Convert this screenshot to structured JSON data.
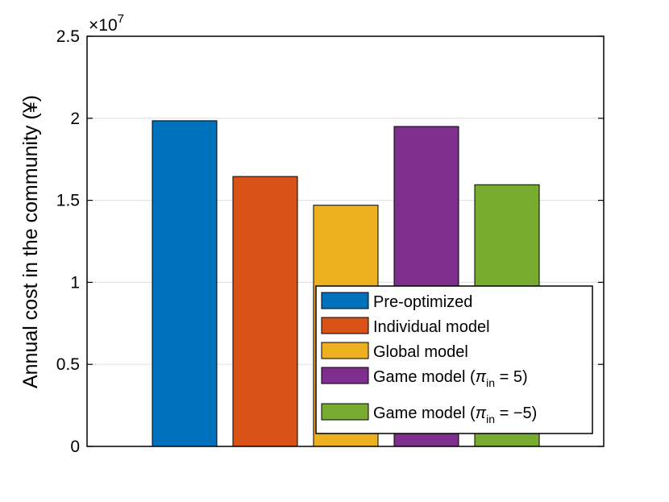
{
  "chart_data": {
    "type": "bar",
    "title": "",
    "xlabel": "",
    "ylabel": "Annual cost in the community (¥)",
    "ylim": [
      0,
      2.5
    ],
    "yticks": [
      "0",
      "0.5",
      "1",
      "1.5",
      "2",
      "2.5"
    ],
    "y_multiplier": {
      "base": "×10",
      "exponent": "7"
    },
    "grid": "y",
    "legend_position": "bottom-right",
    "series": [
      {
        "name": "Pre-optimized",
        "value": 1.985,
        "color": "#0072BD",
        "legend": {
          "text": "Pre-optimized"
        }
      },
      {
        "name": "Individual model",
        "value": 1.645,
        "color": "#D95319",
        "legend": {
          "text": "Individual model"
        }
      },
      {
        "name": "Global model",
        "value": 1.47,
        "color": "#EDB120",
        "legend": {
          "text": "Global model"
        }
      },
      {
        "name": "Game model (π_in = 5)",
        "value": 1.95,
        "color": "#7E2F8E",
        "legend": {
          "text": "Game model (",
          "symbol": "π",
          "subscript": "in",
          "suffix": " = 5)"
        }
      },
      {
        "name": "Game model (π_in = −5)",
        "value": 1.595,
        "color": "#77AC30",
        "legend": {
          "text": "Game model (",
          "symbol": "π",
          "subscript": "in",
          "suffix": " = −5)"
        }
      }
    ]
  }
}
